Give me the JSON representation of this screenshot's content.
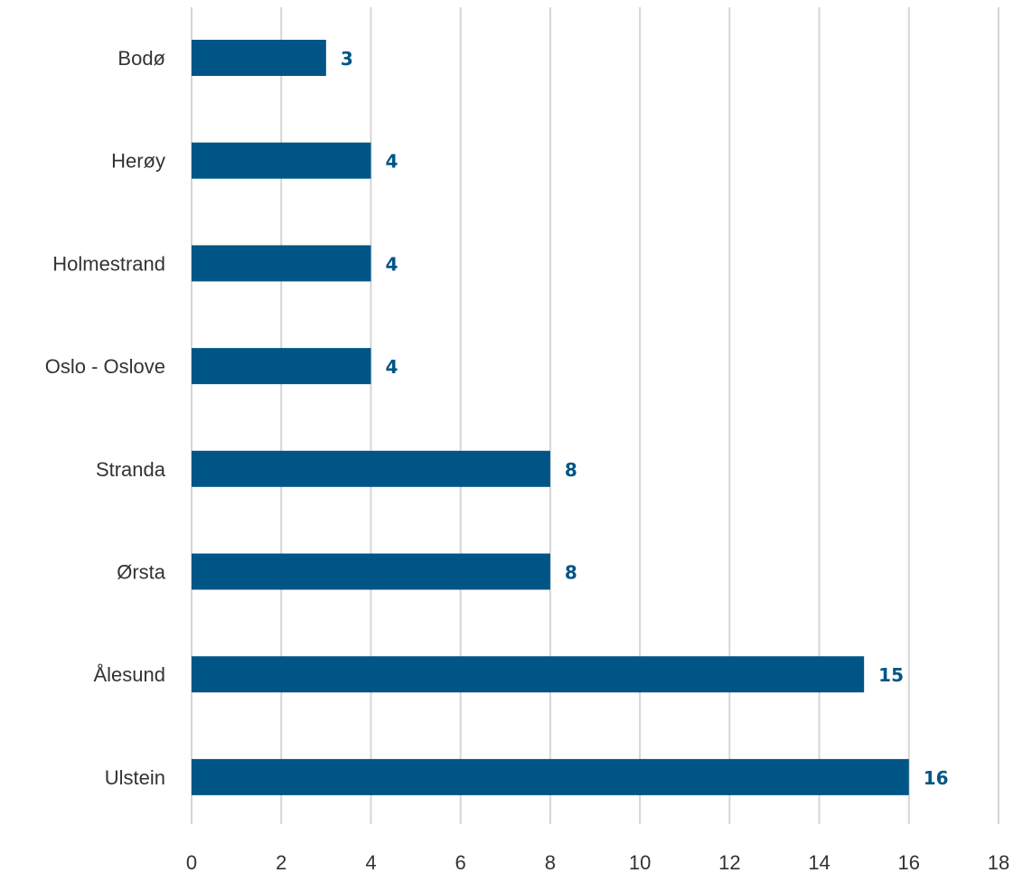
{
  "chart_data": {
    "type": "bar",
    "orientation": "horizontal",
    "categories": [
      "Bodø",
      "Herøy",
      "Holmestrand",
      "Oslo - Oslove",
      "Stranda",
      "Ørsta",
      "Ålesund",
      "Ulstein"
    ],
    "values": [
      3,
      4,
      4,
      4,
      8,
      8,
      15,
      16
    ],
    "title": "",
    "xlabel": "",
    "ylabel": "",
    "xlim": [
      0,
      18
    ],
    "x_ticks": [
      0,
      2,
      4,
      6,
      8,
      10,
      12,
      14,
      16,
      18
    ],
    "grid": "vertical",
    "legend": "none",
    "data_labels": true,
    "colors": {
      "bar": "#005587",
      "label": "#005587",
      "grid": "#d6d6d6",
      "text": "#333333"
    }
  }
}
